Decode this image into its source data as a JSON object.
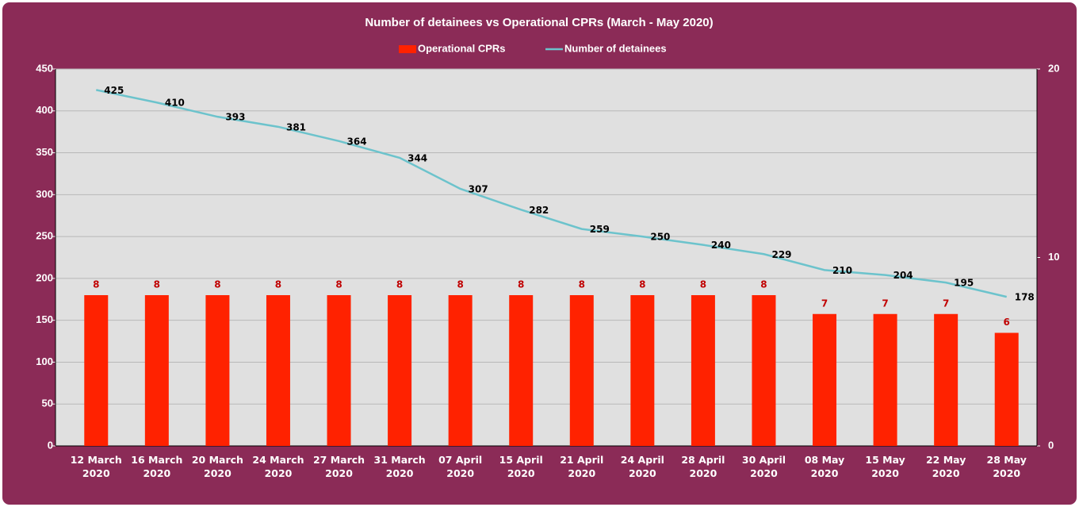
{
  "chart_data": {
    "type": "combo",
    "title": "Number of detainees vs Operational CPRs (March - May 2020)",
    "categories": [
      "12 March 2020",
      "16 March 2020",
      "20 March 2020",
      "24 March 2020",
      "27 March 2020",
      "31 March 2020",
      "07 April 2020",
      "15 April 2020",
      "21 April 2020",
      "24 April 2020",
      "28 April 2020",
      "30 April 2020",
      "08 May 2020",
      "15 May 2020",
      "22 May 2020",
      "28 May 2020"
    ],
    "series": [
      {
        "name": "Operational CPRs",
        "type": "bar",
        "axis": "y2",
        "color": "#ff2200",
        "label_color": "#c00000",
        "values": [
          8,
          8,
          8,
          8,
          8,
          8,
          8,
          8,
          8,
          8,
          8,
          8,
          7,
          7,
          7,
          6
        ]
      },
      {
        "name": "Number of detainees",
        "type": "line",
        "color": "#6cc3cc",
        "label_color": "#000000",
        "values": [
          425,
          410,
          393,
          381,
          364,
          344,
          307,
          282,
          259,
          250,
          240,
          229,
          210,
          204,
          195,
          178
        ]
      }
    ],
    "ylim": [
      0,
      450
    ],
    "yticks": [
      0,
      50,
      100,
      150,
      200,
      250,
      300,
      350,
      400,
      450
    ],
    "y2lim": [
      0,
      20
    ],
    "y2ticks": [
      0,
      10,
      20
    ],
    "grid": true,
    "legend": "top"
  }
}
